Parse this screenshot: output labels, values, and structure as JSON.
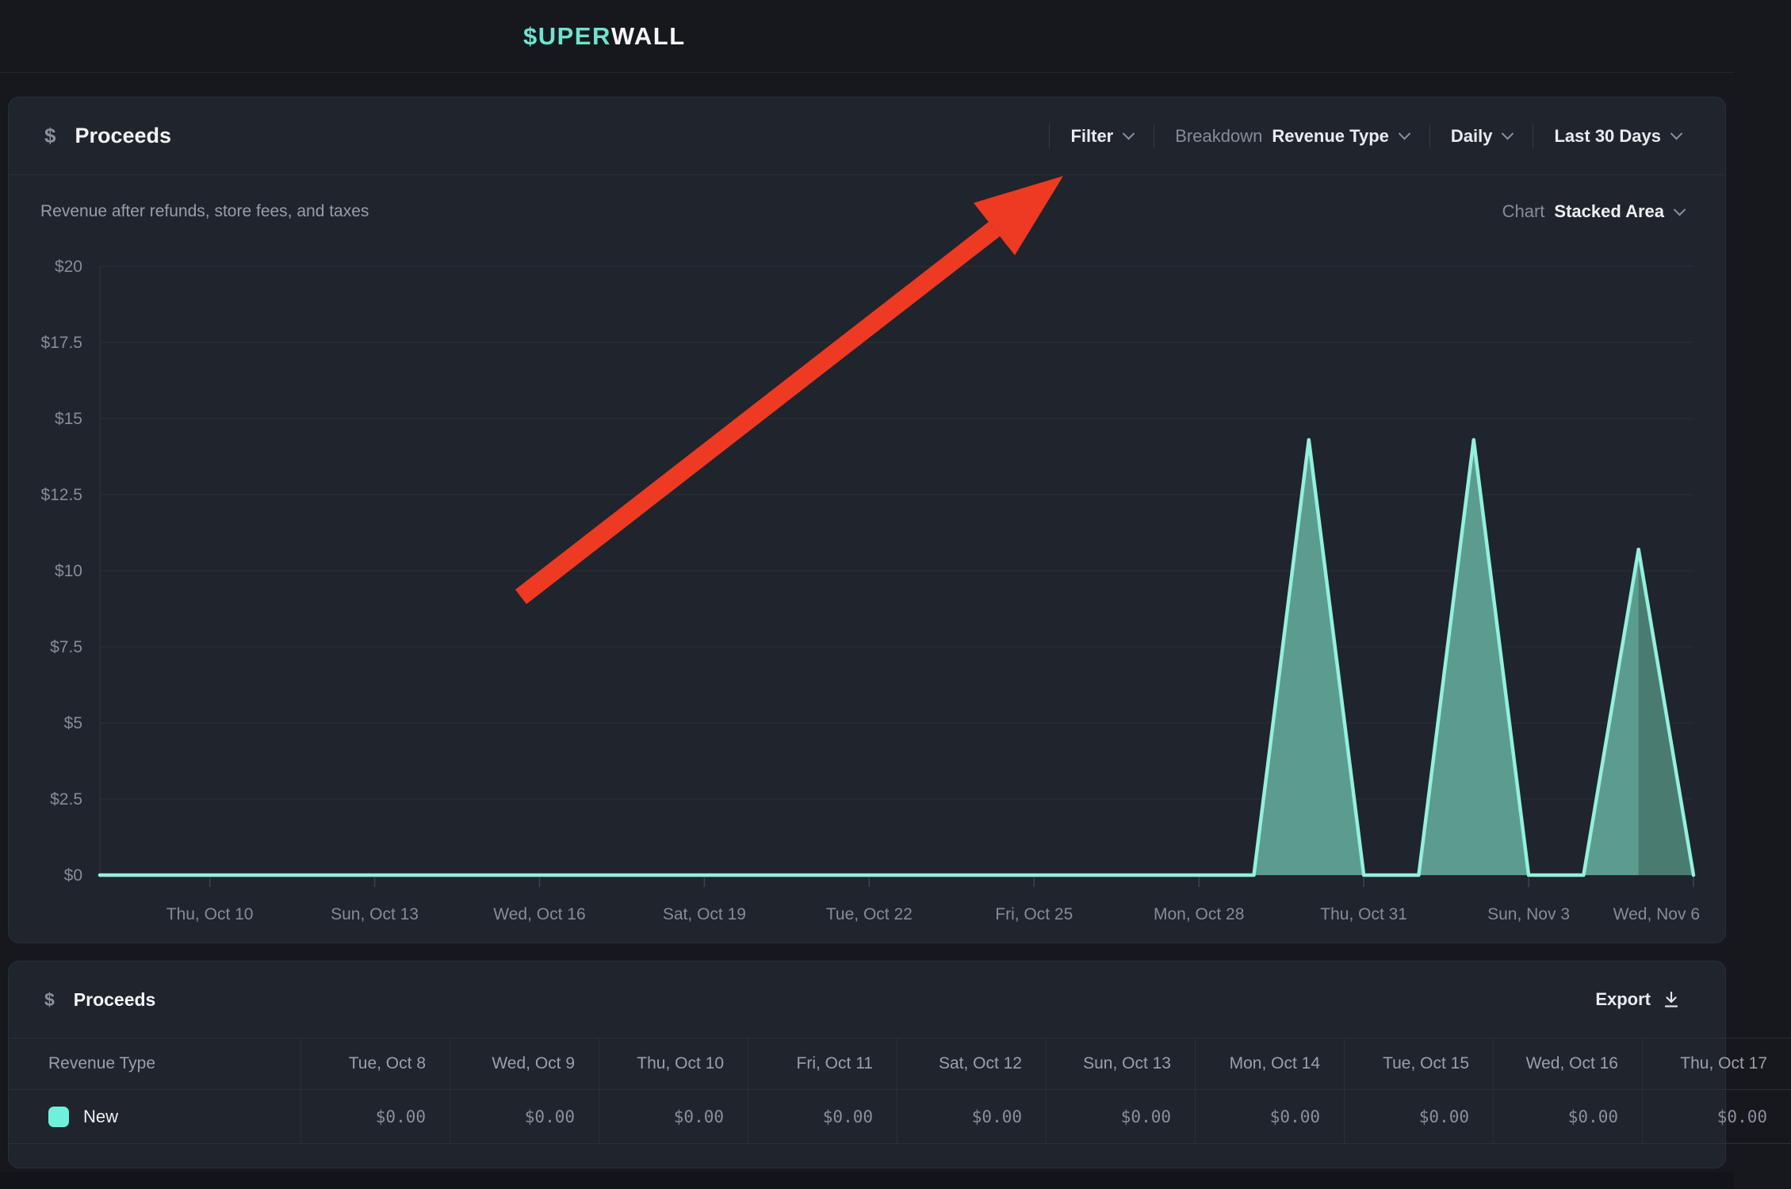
{
  "topbar": {
    "logo": {
      "primary": "$UPER",
      "secondary": "WALL"
    }
  },
  "chart_panel": {
    "dollar_icon": "$",
    "title": "Proceeds",
    "subtitle": "Revenue after refunds, store fees, and taxes",
    "filter": {
      "label": "Filter"
    },
    "breakdown": {
      "label": "Breakdown",
      "value": "Revenue Type"
    },
    "granularity": {
      "value": "Daily"
    },
    "date_range": {
      "value": "Last 30 Days"
    },
    "chart_type": {
      "label": "Chart",
      "value": "Stacked Area"
    }
  },
  "chart_data": {
    "type": "area",
    "stacked": true,
    "title": "Proceeds",
    "xlabel": "",
    "ylabel": "",
    "ylim": [
      0,
      20
    ],
    "grid": "horizontal",
    "legend_position": "none",
    "x_dates": [
      "Oct 8",
      "Oct 9",
      "Oct 10",
      "Oct 11",
      "Oct 12",
      "Oct 13",
      "Oct 14",
      "Oct 15",
      "Oct 16",
      "Oct 17",
      "Oct 18",
      "Oct 19",
      "Oct 20",
      "Oct 21",
      "Oct 22",
      "Oct 23",
      "Oct 24",
      "Oct 25",
      "Oct 26",
      "Oct 27",
      "Oct 28",
      "Oct 29",
      "Oct 30",
      "Oct 31",
      "Nov 1",
      "Nov 2",
      "Nov 3",
      "Nov 4",
      "Nov 5",
      "Nov 6"
    ],
    "series": [
      {
        "name": "New",
        "values": [
          0,
          0,
          0,
          0,
          0,
          0,
          0,
          0,
          0,
          0,
          0,
          0,
          0,
          0,
          0,
          0,
          0,
          0,
          0,
          0,
          0,
          0,
          14.3,
          0,
          0,
          14.3,
          0,
          0,
          10.7,
          0
        ],
        "stroke": "#93f0dd",
        "fill": "#5c9c8e",
        "fill_partial": "#4a7b70"
      }
    ],
    "partial_period_from_index": 28,
    "y_ticks": [
      {
        "v": 0,
        "label": "$0"
      },
      {
        "v": 2.5,
        "label": "$2.5"
      },
      {
        "v": 5,
        "label": "$5"
      },
      {
        "v": 7.5,
        "label": "$7.5"
      },
      {
        "v": 10,
        "label": "$10"
      },
      {
        "v": 12.5,
        "label": "$12.5"
      },
      {
        "v": 15,
        "label": "$15"
      },
      {
        "v": 17.5,
        "label": "$17.5"
      },
      {
        "v": 20,
        "label": "$20"
      }
    ],
    "x_ticks": [
      {
        "index": 2,
        "label": "Thu, Oct 10"
      },
      {
        "index": 5,
        "label": "Sun, Oct 13"
      },
      {
        "index": 8,
        "label": "Wed, Oct 16"
      },
      {
        "index": 11,
        "label": "Sat, Oct 19"
      },
      {
        "index": 14,
        "label": "Tue, Oct 22"
      },
      {
        "index": 17,
        "label": "Fri, Oct 25"
      },
      {
        "index": 20,
        "label": "Mon, Oct 28"
      },
      {
        "index": 23,
        "label": "Thu, Oct 31"
      },
      {
        "index": 26,
        "label": "Sun, Nov 3"
      },
      {
        "index": 29,
        "label": "Wed, Nov 6",
        "anchor": "end"
      }
    ],
    "axis_label_color": "#858c98",
    "grid_color": "#2b303a",
    "tick_color": "#3e4450"
  },
  "annotation": {
    "arrow_color": "#ee3a22",
    "points_at": "Filter"
  },
  "table_panel": {
    "dollar_icon": "$",
    "title": "Proceeds",
    "export_label": "Export",
    "columns": [
      "Revenue Type",
      "Tue, Oct 8",
      "Wed, Oct 9",
      "Thu, Oct 10",
      "Fri, Oct 11",
      "Sat, Oct 12",
      "Sun, Oct 13",
      "Mon, Oct 14",
      "Tue, Oct 15",
      "Wed, Oct 16",
      "Thu, Oct 17"
    ],
    "rows": [
      {
        "label": "New",
        "swatch_color": "#6ff0dc",
        "values": [
          "$0.00",
          "$0.00",
          "$0.00",
          "$0.00",
          "$0.00",
          "$0.00",
          "$0.00",
          "$0.00",
          "$0.00",
          "$0.00"
        ]
      }
    ]
  },
  "colors": {
    "page_bg": "#16181d",
    "panel_bg": "#20242c",
    "accent_teal": "#6fe3cf"
  }
}
